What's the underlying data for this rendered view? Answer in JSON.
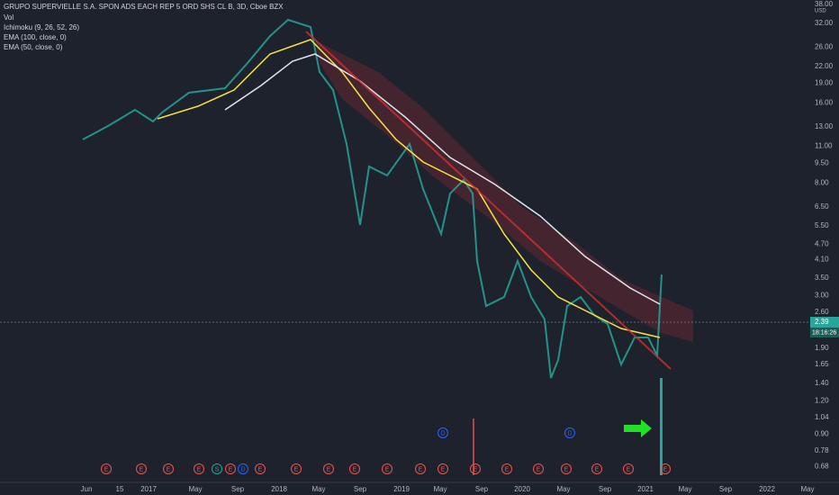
{
  "header": {
    "title": "GRUPO SUPERVIELLE S.A. SPON ADS EACH REP 5 ORD SHS CL B, 3D, Cboe BZX",
    "indicators": [
      "Vol",
      "Ichimoku (9, 26, 52, 26)",
      "EMA (100, close, 0)",
      "EMA (50, close, 0)"
    ]
  },
  "price_axis": {
    "currency": "USD",
    "ticks": [
      {
        "value": 38,
        "label": "38.00"
      },
      {
        "value": 32,
        "label": "32.00"
      },
      {
        "value": 26,
        "label": "26.00"
      },
      {
        "value": 22,
        "label": "22.00"
      },
      {
        "value": 19,
        "label": "19.00"
      },
      {
        "value": 16,
        "label": "16.00"
      },
      {
        "value": 13,
        "label": "13.00"
      },
      {
        "value": 11,
        "label": "11.00"
      },
      {
        "value": 9.5,
        "label": "9.50"
      },
      {
        "value": 8,
        "label": "8.00"
      },
      {
        "value": 6.5,
        "label": "6.50"
      },
      {
        "value": 5.5,
        "label": "5.50"
      },
      {
        "value": 4.7,
        "label": "4.70"
      },
      {
        "value": 4.1,
        "label": "4.10"
      },
      {
        "value": 3.5,
        "label": "3.50"
      },
      {
        "value": 3,
        "label": "3.00"
      },
      {
        "value": 2.6,
        "label": "2.60"
      },
      {
        "value": 1.9,
        "label": "1.90"
      },
      {
        "value": 1.65,
        "label": "1.65"
      },
      {
        "value": 1.4,
        "label": "1.40"
      },
      {
        "value": 1.2,
        "label": "1.20"
      },
      {
        "value": 1.04,
        "label": "1.04"
      },
      {
        "value": 0.9,
        "label": "0.90"
      },
      {
        "value": 0.78,
        "label": "0.78"
      },
      {
        "value": 0.68,
        "label": "0.68"
      }
    ],
    "last_price": {
      "value": 2.39,
      "label": "2.39"
    },
    "countdown": "18:16:26"
  },
  "time_axis": {
    "labels": [
      "Jun",
      "15",
      "2017",
      "May",
      "Sep",
      "2018",
      "May",
      "Sep",
      "2019",
      "May",
      "Sep",
      "2020",
      "May",
      "Sep",
      "2021",
      "May",
      "Sep",
      "2022",
      "May"
    ]
  },
  "events": [
    "E",
    "E",
    "E",
    "E",
    "S",
    "E",
    "D",
    "E",
    "E",
    "E",
    "E",
    "E",
    "E",
    "E",
    "E",
    "E",
    "E",
    "E",
    "E",
    "E",
    "E"
  ],
  "dividends": [
    "D",
    "D"
  ]
}
